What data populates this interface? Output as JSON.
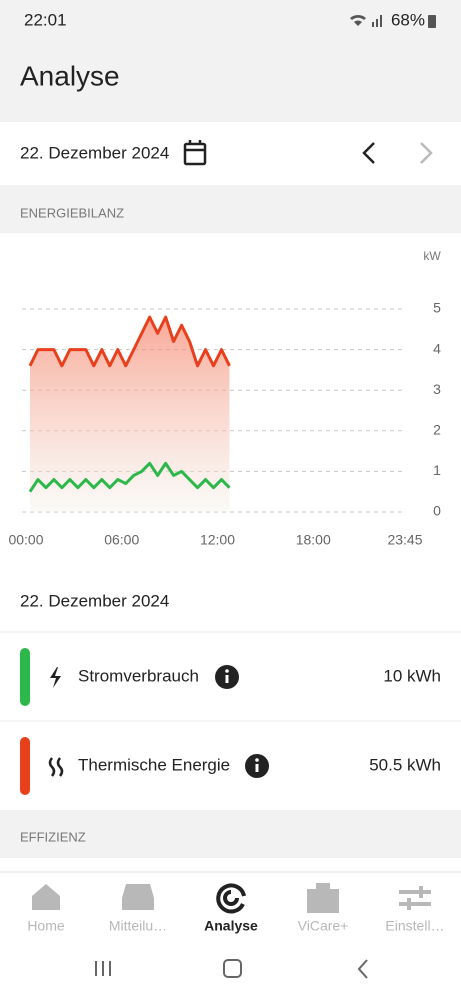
{
  "status_bar": {
    "time": "22:01",
    "battery": "68%"
  },
  "header": {
    "title": "Analyse"
  },
  "date_picker": {
    "date": "22. Dezember 2024"
  },
  "sections": [
    "ENERGIEBILANZ",
    "EFFIZIENZ"
  ],
  "chart_data": {
    "type": "line",
    "y_label": "kW",
    "x": [
      0.25,
      0.75,
      1.25,
      1.75,
      2.25,
      2.75,
      3.25,
      3.75,
      4.25,
      4.75,
      5.25,
      5.75,
      6.25,
      6.75,
      7.25,
      7.75,
      8.25,
      8.75,
      9.25,
      9.75,
      10.25,
      10.75,
      11.25,
      11.75,
      12.25,
      12.75
    ],
    "xlim": [
      0,
      23.75
    ],
    "xticks": [
      {
        "value": 0,
        "label": "00:00"
      },
      {
        "value": 6,
        "label": "06:00"
      },
      {
        "value": 12,
        "label": "12:00"
      },
      {
        "value": 18,
        "label": "18:00"
      },
      {
        "value": 23.75,
        "label": "23:45"
      }
    ],
    "ylim": [
      0,
      5
    ],
    "yticks": [
      0,
      1,
      2,
      3,
      4,
      5
    ],
    "grid": true,
    "series": [
      {
        "name": "Stromverbrauch",
        "color": "#2db84c",
        "values": [
          0.5,
          0.8,
          0.6,
          0.8,
          0.6,
          0.8,
          0.6,
          0.8,
          0.6,
          0.8,
          0.6,
          0.8,
          0.7,
          0.9,
          1.0,
          1.2,
          0.9,
          1.2,
          0.9,
          1.0,
          0.8,
          0.6,
          0.8,
          0.6,
          0.8,
          0.6
        ]
      },
      {
        "name": "Thermische Energie",
        "color": "#e8401c",
        "values": [
          3.6,
          4,
          4,
          4,
          3.6,
          4,
          4,
          4,
          3.6,
          4,
          3.6,
          4,
          3.6,
          4,
          4.4,
          4.8,
          4.4,
          4.8,
          4.2,
          4.6,
          4.2,
          3.6,
          4,
          3.6,
          4,
          3.6
        ]
      }
    ]
  },
  "summary": {
    "date": "22. Dezember 2024",
    "totals": [
      "10 kWh",
      "50.5 kWh"
    ]
  },
  "nav": {
    "items": [
      "Home",
      "Mitteilu…",
      "Analyse",
      "ViCare+",
      "Einstell…"
    ],
    "active": 2
  }
}
